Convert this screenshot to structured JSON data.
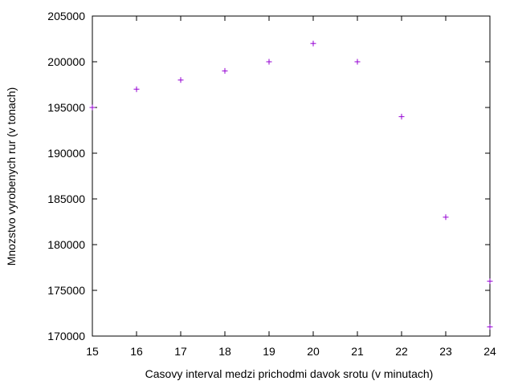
{
  "chart_data": {
    "type": "scatter",
    "title": "",
    "xlabel": "Casovy interval medzi prichodmi davok srotu (v minutach)",
    "ylabel": "Mnozstvo vyrobenych rur (v tonach)",
    "xlim": [
      15,
      24
    ],
    "ylim": [
      170000,
      205000
    ],
    "xticks": [
      15,
      16,
      17,
      18,
      19,
      20,
      21,
      22,
      23,
      24
    ],
    "yticks": [
      170000,
      175000,
      180000,
      185000,
      190000,
      195000,
      200000,
      205000
    ],
    "grid": false,
    "legend": "none",
    "marker": "plus",
    "color": "#9400d3",
    "series": [
      {
        "points": [
          [
            15,
            195000
          ],
          [
            16,
            197000
          ],
          [
            17,
            198000
          ],
          [
            18,
            199000
          ],
          [
            19,
            200000
          ],
          [
            20,
            202000
          ],
          [
            21,
            200000
          ],
          [
            22,
            194000
          ],
          [
            23,
            183000
          ],
          [
            24,
            176000
          ],
          [
            24,
            171000
          ]
        ]
      }
    ]
  }
}
